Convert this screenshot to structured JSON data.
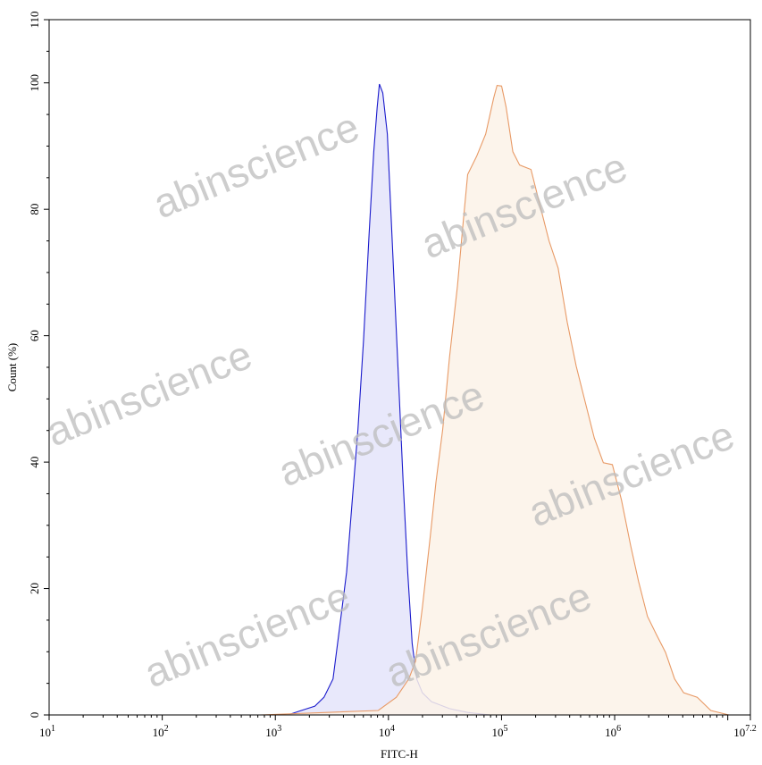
{
  "chart_data": {
    "type": "area",
    "title": "",
    "xlabel": "FITC-H",
    "ylabel": "Count (%)",
    "x_scale": "log",
    "xlim_log10": [
      1,
      7.2
    ],
    "ylim": [
      0,
      110
    ],
    "x_tick_labels": [
      {
        "base": "10",
        "exp": "1"
      },
      {
        "base": "10",
        "exp": "2"
      },
      {
        "base": "10",
        "exp": "3"
      },
      {
        "base": "10",
        "exp": "4"
      },
      {
        "base": "10",
        "exp": "5"
      },
      {
        "base": "10",
        "exp": "6"
      },
      {
        "base": "10",
        "exp": "7.2"
      }
    ],
    "y_tick_labels": [
      "0",
      "20",
      "40",
      "60",
      "80",
      "100",
      "110"
    ],
    "grid": false,
    "legend": "none",
    "series": [
      {
        "color": "#1a1acc",
        "fill": "#e4e4fa",
        "points_log10x_y": [
          [
            2.47,
            0
          ],
          [
            3.11,
            0
          ],
          [
            3.23,
            0.7
          ],
          [
            3.35,
            1.4
          ],
          [
            3.43,
            2.8
          ],
          [
            3.51,
            5.7
          ],
          [
            3.57,
            14.1
          ],
          [
            3.63,
            22.6
          ],
          [
            3.68,
            33.9
          ],
          [
            3.73,
            45.2
          ],
          [
            3.78,
            59.4
          ],
          [
            3.83,
            76.4
          ],
          [
            3.87,
            89.1
          ],
          [
            3.9,
            96.1
          ],
          [
            3.92,
            99.8
          ],
          [
            3.95,
            98.4
          ],
          [
            3.99,
            91.9
          ],
          [
            4.03,
            76.4
          ],
          [
            4.08,
            56.6
          ],
          [
            4.13,
            36.8
          ],
          [
            4.17,
            22.6
          ],
          [
            4.21,
            11.3
          ],
          [
            4.25,
            5.7
          ],
          [
            4.3,
            3.5
          ],
          [
            4.38,
            2.1
          ],
          [
            4.54,
            1.0
          ],
          [
            4.7,
            0.4
          ],
          [
            4.9,
            0
          ]
        ]
      },
      {
        "color": "#e89a66",
        "fill": "#fcf2e8",
        "points_log10x_y": [
          [
            2.87,
            0
          ],
          [
            3.91,
            0.7
          ],
          [
            4.07,
            2.8
          ],
          [
            4.18,
            5.7
          ],
          [
            4.24,
            8.5
          ],
          [
            4.3,
            17.0
          ],
          [
            4.37,
            28.3
          ],
          [
            4.42,
            36.8
          ],
          [
            4.48,
            45.2
          ],
          [
            4.54,
            56.6
          ],
          [
            4.61,
            67.9
          ],
          [
            4.66,
            77.8
          ],
          [
            4.7,
            85.5
          ],
          [
            4.78,
            88.4
          ],
          [
            4.86,
            91.9
          ],
          [
            4.93,
            97.6
          ],
          [
            4.96,
            99.6
          ],
          [
            5.0,
            99.5
          ],
          [
            5.04,
            96.2
          ],
          [
            5.1,
            89.1
          ],
          [
            5.16,
            87.0
          ],
          [
            5.26,
            86.3
          ],
          [
            5.34,
            80.6
          ],
          [
            5.42,
            75.0
          ],
          [
            5.5,
            70.7
          ],
          [
            5.58,
            62.2
          ],
          [
            5.66,
            55.2
          ],
          [
            5.74,
            49.5
          ],
          [
            5.82,
            43.8
          ],
          [
            5.9,
            39.9
          ],
          [
            5.98,
            39.6
          ],
          [
            6.06,
            34.0
          ],
          [
            6.14,
            26.9
          ],
          [
            6.21,
            21.2
          ],
          [
            6.29,
            15.6
          ],
          [
            6.37,
            12.7
          ],
          [
            6.45,
            9.9
          ],
          [
            6.53,
            5.7
          ],
          [
            6.61,
            3.5
          ],
          [
            6.73,
            2.8
          ],
          [
            6.85,
            0.7
          ],
          [
            7.01,
            0
          ]
        ]
      }
    ]
  },
  "watermark": "abinscience"
}
